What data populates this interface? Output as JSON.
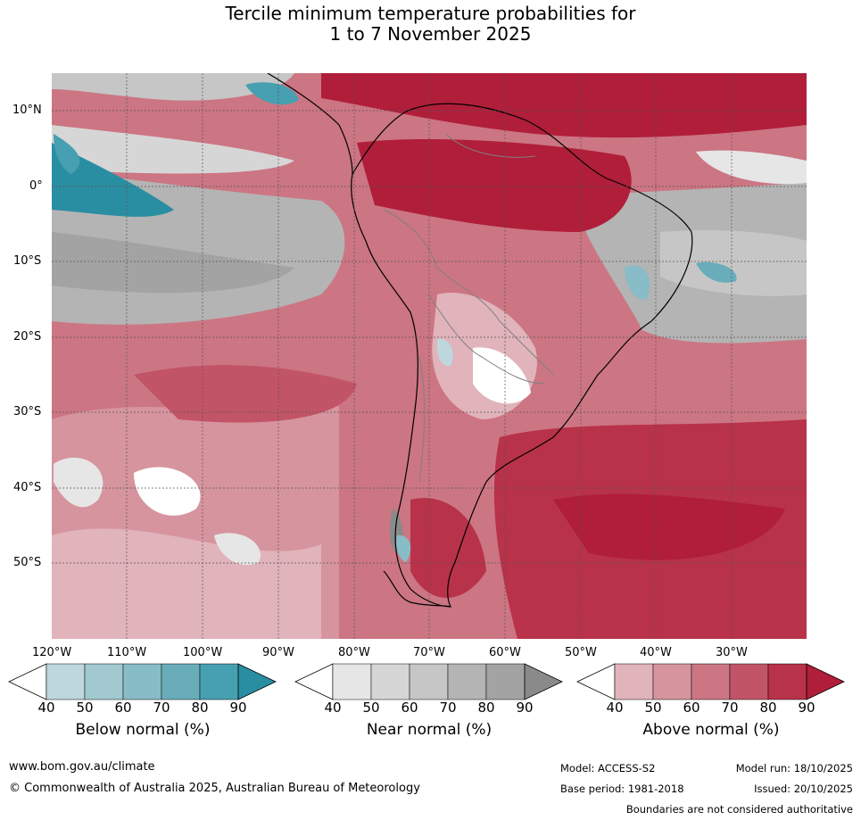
{
  "title": {
    "line1": "Tercile minimum temperature probabilities for",
    "line2": "1 to 7 November 2025"
  },
  "map": {
    "lat_labels": [
      "10°N",
      "0°",
      "10°S",
      "20°S",
      "30°S",
      "40°S",
      "50°S"
    ],
    "lon_labels": [
      "120°W",
      "110°W",
      "100°W",
      "90°W",
      "80°W",
      "70°W",
      "60°W",
      "50°W",
      "40°W",
      "30°W"
    ],
    "region": "South America"
  },
  "legends": [
    {
      "name": "below",
      "label": "Below normal (%)",
      "ticks": [
        "40",
        "50",
        "60",
        "70",
        "80",
        "90"
      ],
      "colors": [
        "#ffffff",
        "#bdd7dd",
        "#a3c9d0",
        "#88bcc6",
        "#69adbb",
        "#46a0b1",
        "#2a8ea2"
      ]
    },
    {
      "name": "near",
      "label": "Near normal (%)",
      "ticks": [
        "40",
        "50",
        "60",
        "70",
        "80",
        "90"
      ],
      "colors": [
        "#ffffff",
        "#e6e6e6",
        "#d6d6d6",
        "#c6c6c6",
        "#b4b4b4",
        "#a3a3a3",
        "#8a8a8a"
      ]
    },
    {
      "name": "above",
      "label": "Above normal (%)",
      "ticks": [
        "40",
        "50",
        "60",
        "70",
        "80",
        "90"
      ],
      "colors": [
        "#ffffff",
        "#e1b3bb",
        "#d6949f",
        "#cc7583",
        "#c25467",
        "#b83249",
        "#b01e3a"
      ]
    }
  ],
  "footer": {
    "url": "www.bom.gov.au/climate",
    "copyright": "© Commonwealth of Australia 2025, Australian Bureau of Meteorology",
    "model": "Model: ACCESS-S2",
    "base_period": "Base period: 1981-2018",
    "model_run": "Model run: 18/10/2025",
    "issued": "Issued: 20/10/2025",
    "disclaimer": "Boundaries are not considered authoritative"
  }
}
